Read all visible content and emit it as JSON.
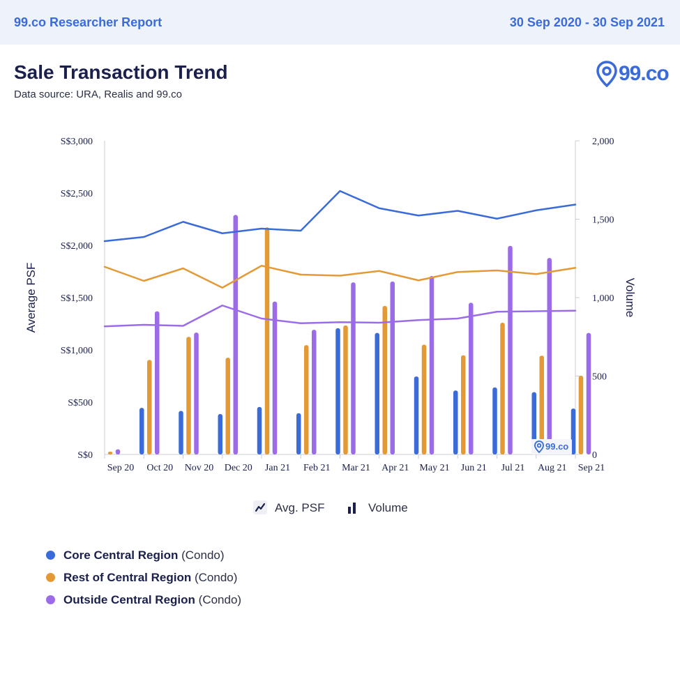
{
  "header": {
    "report_title": "99.co Researcher Report",
    "date_range": "30 Sep 2020 - 30 Sep 2021"
  },
  "page": {
    "title": "Sale Transaction Trend",
    "subtitle": "Data source: URA, Realis and 99.co"
  },
  "logo": {
    "text": "99.co"
  },
  "watermark": {
    "text": "99.co"
  },
  "toggles": [
    {
      "label": "Avg. PSF",
      "icon": "line-chart-icon"
    },
    {
      "label": "Volume",
      "icon": "bar-chart-icon"
    }
  ],
  "legend": [
    {
      "name": "Core Central Region",
      "type": "(Condo)",
      "color": "#3a6bd8"
    },
    {
      "name": "Rest of Central Region",
      "type": "(Condo)",
      "color": "#e39a36"
    },
    {
      "name": "Outside Central Region",
      "type": "(Condo)",
      "color": "#9b6be8"
    }
  ],
  "colors": {
    "ccr": "#3a6bd8",
    "rcr": "#e39a36",
    "ocr": "#9b6be8",
    "brand": "#3a6bd8"
  },
  "chart_data": {
    "type": "bar+line",
    "categories": [
      "Sep 20",
      "Oct 20",
      "Nov 20",
      "Dec 20",
      "Jan 21",
      "Feb 21",
      "Mar 21",
      "Apr 21",
      "May 21",
      "Jun 21",
      "Jul 21",
      "Aug 21",
      "Sep 21"
    ],
    "ylabel_left": "Average PSF",
    "ylabel_right": "Volume",
    "left_ticks": [
      "S$0",
      "S$500",
      "S$1,000",
      "S$1,500",
      "S$2,000",
      "S$2,500",
      "S$3,000"
    ],
    "right_ticks": [
      "0",
      "500",
      "1,000",
      "1,500",
      "2,000"
    ],
    "ylim_left": [
      0,
      3000
    ],
    "ylim_right": [
      0,
      2000
    ],
    "psf_series": [
      {
        "region": "ccr",
        "values": [
          2040,
          2080,
          2225,
          2115,
          2160,
          2140,
          2520,
          2355,
          2285,
          2330,
          2255,
          2335,
          2390
        ]
      },
      {
        "region": "rcr",
        "values": [
          1795,
          1660,
          1780,
          1595,
          1805,
          1720,
          1710,
          1755,
          1665,
          1745,
          1760,
          1725,
          1785
        ]
      },
      {
        "region": "ocr",
        "values": [
          1225,
          1240,
          1230,
          1425,
          1300,
          1255,
          1265,
          1260,
          1285,
          1300,
          1365,
          1370,
          1375
        ]
      }
    ],
    "volume_series": [
      {
        "region": "ccr",
        "values": [
          0,
          297,
          278,
          258,
          303,
          263,
          805,
          775,
          497,
          408,
          427,
          397,
          293
        ]
      },
      {
        "region": "rcr",
        "values": [
          18,
          603,
          750,
          617,
          1448,
          697,
          823,
          947,
          700,
          632,
          840,
          630,
          502
        ]
      },
      {
        "region": "ocr",
        "values": [
          33,
          913,
          777,
          1527,
          975,
          795,
          1097,
          1103,
          1138,
          967,
          1330,
          1253,
          775
        ]
      }
    ]
  }
}
